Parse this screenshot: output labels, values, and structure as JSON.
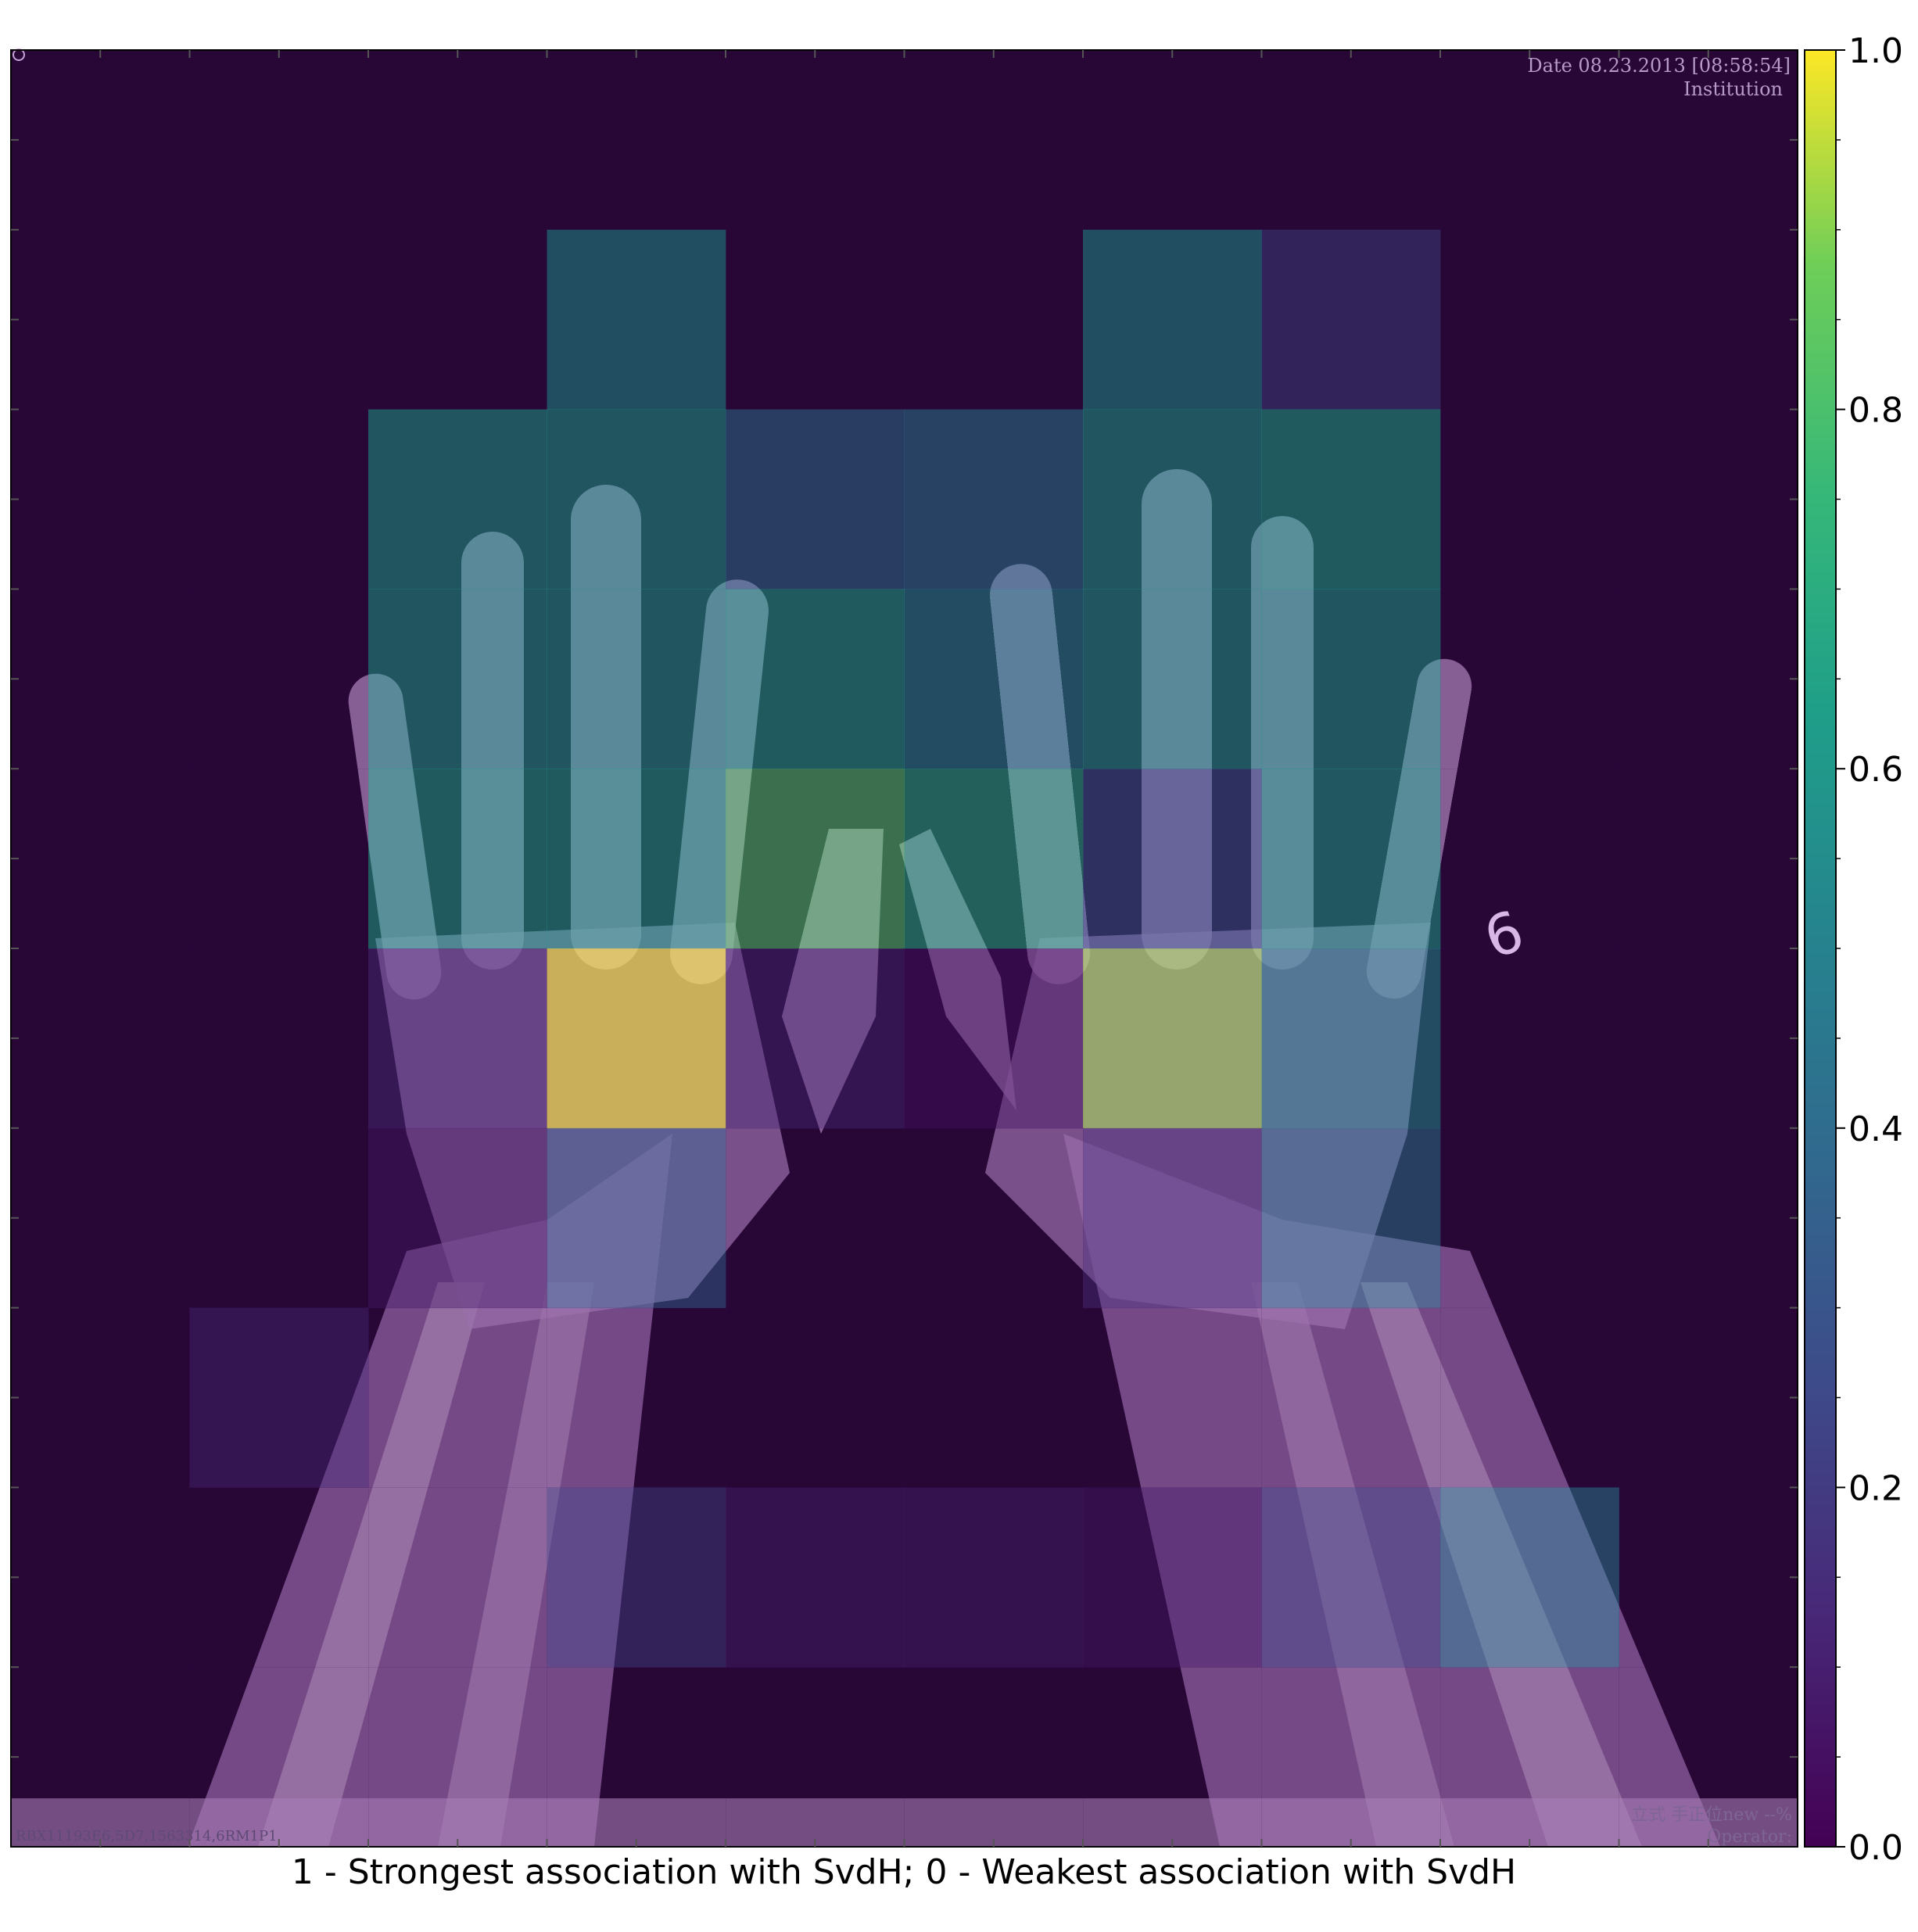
{
  "chart_data": {
    "type": "heatmap",
    "title": "",
    "xlabel": "1 - Strongest association with SvdH; 0 - Weakest association with SvdH",
    "ylabel": "",
    "grid": {
      "rows": 10,
      "cols": 10
    },
    "values": [
      [
        0.0,
        0.0,
        0.0,
        0.0,
        0.0,
        0.0,
        0.0,
        0.0,
        0.0,
        0.0
      ],
      [
        0.0,
        0.0,
        0.0,
        0.52,
        0.0,
        0.0,
        0.52,
        0.2,
        0.0,
        0.0
      ],
      [
        0.0,
        0.0,
        0.58,
        0.58,
        0.38,
        0.42,
        0.58,
        0.62,
        0.0,
        0.0
      ],
      [
        0.0,
        0.0,
        0.58,
        0.58,
        0.62,
        0.5,
        0.58,
        0.58,
        0.0,
        0.0
      ],
      [
        0.0,
        0.0,
        0.62,
        0.62,
        0.82,
        0.68,
        0.28,
        0.6,
        0.0,
        0.0
      ],
      [
        0.0,
        0.0,
        0.12,
        1.0,
        0.1,
        0.04,
        0.92,
        0.5,
        0.0,
        0.0
      ],
      [
        0.0,
        0.0,
        0.06,
        0.3,
        0.0,
        0.0,
        0.12,
        0.4,
        0.0,
        0.0
      ],
      [
        0.0,
        0.1,
        0.0,
        0.0,
        0.0,
        0.0,
        0.0,
        0.0,
        0.0,
        0.0
      ],
      [
        0.0,
        0.0,
        0.0,
        0.18,
        0.08,
        0.08,
        0.06,
        0.2,
        0.42,
        0.0
      ],
      [
        0.0,
        0.0,
        0.0,
        0.0,
        0.0,
        0.0,
        0.0,
        0.0,
        0.0,
        0.0
      ]
    ],
    "colorbar": {
      "range": [
        0.0,
        1.0
      ],
      "ticks": [
        "0.0",
        "0.2",
        "0.4",
        "0.6",
        "0.8",
        "1.0"
      ],
      "colormap": "viridis"
    }
  },
  "image_text": {
    "top_right_line1": "Date 08.23.2013 [08:58:54]",
    "top_right_line2": "Institution",
    "bottom_left": "RBX11193E6,5D7,1563314,6RM1P1",
    "bottom_right_line1": "立式 手正位new --%",
    "bottom_right_line2": "Operator:",
    "marker_label": "6"
  },
  "colors": {
    "background": "#1f0a2e",
    "bone": "#d8b6e6",
    "viridis": [
      "#440154",
      "#3b528b",
      "#21918c",
      "#5ec962",
      "#fde725"
    ]
  }
}
